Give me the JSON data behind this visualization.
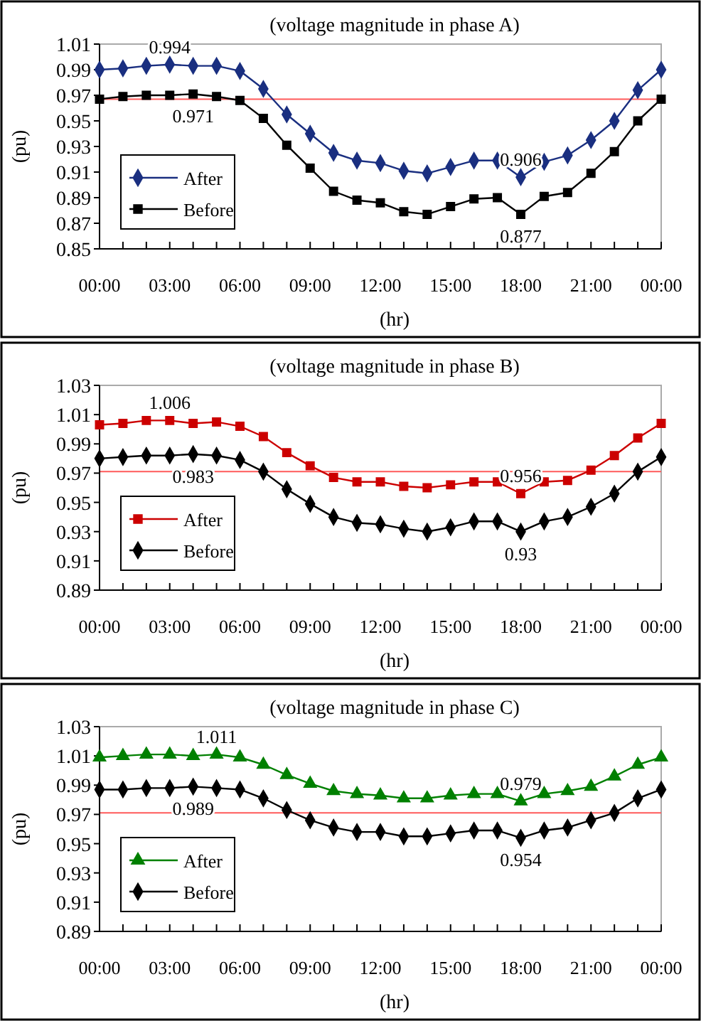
{
  "chart_data": [
    {
      "type": "line",
      "title": "(voltage magnitude in phase A)",
      "xlabel": "(hr)",
      "ylabel": "(pu)",
      "xlim": [
        0,
        24
      ],
      "ylim": [
        0.85,
        1.01
      ],
      "xticks": [
        {
          "value": 0,
          "label": "00:00"
        },
        {
          "value": 1,
          "label": null
        },
        {
          "value": 2,
          "label": null
        },
        {
          "value": 3,
          "label": "03:00"
        },
        {
          "value": 4,
          "label": null
        },
        {
          "value": 5,
          "label": null
        },
        {
          "value": 6,
          "label": "06:00"
        },
        {
          "value": 7,
          "label": null
        },
        {
          "value": 8,
          "label": null
        },
        {
          "value": 9,
          "label": "09:00"
        },
        {
          "value": 10,
          "label": null
        },
        {
          "value": 11,
          "label": null
        },
        {
          "value": 12,
          "label": "12:00"
        },
        {
          "value": 13,
          "label": null
        },
        {
          "value": 14,
          "label": null
        },
        {
          "value": 15,
          "label": "15:00"
        },
        {
          "value": 16,
          "label": null
        },
        {
          "value": 17,
          "label": null
        },
        {
          "value": 18,
          "label": "18:00"
        },
        {
          "value": 19,
          "label": null
        },
        {
          "value": 20,
          "label": null
        },
        {
          "value": 21,
          "label": "21:00"
        },
        {
          "value": 22,
          "label": null
        },
        {
          "value": 23,
          "label": null
        },
        {
          "value": 24,
          "label": "00:00"
        }
      ],
      "yticks": [
        0.85,
        0.87,
        0.89,
        0.91,
        0.93,
        0.95,
        0.97,
        0.99,
        1.01
      ],
      "x": [
        0,
        1,
        2,
        3,
        4,
        5,
        6,
        7,
        8,
        9,
        10,
        11,
        12,
        13,
        14,
        15,
        16,
        17,
        18,
        19,
        20,
        21,
        22,
        23,
        24
      ],
      "series": [
        {
          "name": "After",
          "color": "#1a2f80",
          "marker": "diamond",
          "values": [
            0.99,
            0.991,
            0.993,
            0.994,
            0.993,
            0.993,
            0.989,
            0.975,
            0.955,
            0.94,
            0.925,
            0.919,
            0.917,
            0.911,
            0.909,
            0.914,
            0.919,
            0.919,
            0.906,
            0.918,
            0.923,
            0.935,
            0.95,
            0.974,
            0.99
          ]
        },
        {
          "name": "Before",
          "color": "#000000",
          "marker": "square",
          "values": [
            0.967,
            0.969,
            0.97,
            0.97,
            0.971,
            0.969,
            0.966,
            0.952,
            0.931,
            0.913,
            0.895,
            0.888,
            0.886,
            0.879,
            0.877,
            0.883,
            0.889,
            0.89,
            0.877,
            0.891,
            0.894,
            0.909,
            0.926,
            0.95,
            0.967
          ]
        }
      ],
      "ref_lines": [
        {
          "axis": "y",
          "value": 0.967,
          "color": "#ff5a5a"
        }
      ],
      "annotations": [
        {
          "text": "0.994",
          "x": 3,
          "y": 0.994
        },
        {
          "text": "0.971",
          "x": 4,
          "y": 0.971
        },
        {
          "text": "0.906",
          "x": 18,
          "y": 0.906
        },
        {
          "text": "0.877",
          "x": 18,
          "y": 0.877
        }
      ],
      "legend": "bottom left",
      "grid": false,
      "line_style": "solid"
    },
    {
      "type": "line",
      "title": "(voltage magnitude in phase B)",
      "xlabel": "(hr)",
      "ylabel": "(pu)",
      "xlim": [
        0,
        24
      ],
      "ylim": [
        0.89,
        1.03
      ],
      "xticks": [
        {
          "value": 0,
          "label": "00:00"
        },
        {
          "value": 1,
          "label": null
        },
        {
          "value": 2,
          "label": null
        },
        {
          "value": 3,
          "label": "03:00"
        },
        {
          "value": 4,
          "label": null
        },
        {
          "value": 5,
          "label": null
        },
        {
          "value": 6,
          "label": "06:00"
        },
        {
          "value": 7,
          "label": null
        },
        {
          "value": 8,
          "label": null
        },
        {
          "value": 9,
          "label": "09:00"
        },
        {
          "value": 10,
          "label": null
        },
        {
          "value": 11,
          "label": null
        },
        {
          "value": 12,
          "label": "12:00"
        },
        {
          "value": 13,
          "label": null
        },
        {
          "value": 14,
          "label": null
        },
        {
          "value": 15,
          "label": "15:00"
        },
        {
          "value": 16,
          "label": null
        },
        {
          "value": 17,
          "label": null
        },
        {
          "value": 18,
          "label": "18:00"
        },
        {
          "value": 19,
          "label": null
        },
        {
          "value": 20,
          "label": null
        },
        {
          "value": 21,
          "label": "21:00"
        },
        {
          "value": 22,
          "label": null
        },
        {
          "value": 23,
          "label": null
        },
        {
          "value": 24,
          "label": "00:00"
        }
      ],
      "yticks": [
        0.89,
        0.91,
        0.93,
        0.95,
        0.97,
        0.99,
        1.01,
        1.03
      ],
      "x": [
        0,
        1,
        2,
        3,
        4,
        5,
        6,
        7,
        8,
        9,
        10,
        11,
        12,
        13,
        14,
        15,
        16,
        17,
        18,
        19,
        20,
        21,
        22,
        23,
        24
      ],
      "series": [
        {
          "name": "After",
          "color": "#cc0000",
          "marker": "square",
          "values": [
            1.003,
            1.004,
            1.006,
            1.006,
            1.004,
            1.005,
            1.002,
            0.995,
            0.984,
            0.975,
            0.967,
            0.964,
            0.964,
            0.961,
            0.96,
            0.962,
            0.964,
            0.964,
            0.956,
            0.964,
            0.965,
            0.972,
            0.982,
            0.994,
            1.004
          ]
        },
        {
          "name": "Before",
          "color": "#000000",
          "marker": "diamond",
          "values": [
            0.98,
            0.981,
            0.982,
            0.982,
            0.983,
            0.982,
            0.979,
            0.971,
            0.959,
            0.949,
            0.94,
            0.936,
            0.935,
            0.932,
            0.93,
            0.933,
            0.937,
            0.937,
            0.93,
            0.937,
            0.94,
            0.947,
            0.956,
            0.971,
            0.981
          ]
        }
      ],
      "ref_lines": [
        {
          "axis": "y",
          "value": 0.971,
          "color": "#ff5a5a"
        }
      ],
      "annotations": [
        {
          "text": "1.006",
          "x": 3,
          "y": 1.006
        },
        {
          "text": "0.983",
          "x": 4,
          "y": 0.983
        },
        {
          "text": "0.956",
          "x": 18,
          "y": 0.956
        },
        {
          "text": "0.93",
          "x": 18,
          "y": 0.93
        }
      ],
      "legend": "bottom left",
      "grid": false,
      "line_style": "solid"
    },
    {
      "type": "line",
      "title": "(voltage magnitude in phase C)",
      "xlabel": "(hr)",
      "ylabel": "(pu)",
      "xlim": [
        0,
        24
      ],
      "ylim": [
        0.89,
        1.03
      ],
      "xticks": [
        {
          "value": 0,
          "label": "00:00"
        },
        {
          "value": 1,
          "label": null
        },
        {
          "value": 2,
          "label": null
        },
        {
          "value": 3,
          "label": "03:00"
        },
        {
          "value": 4,
          "label": null
        },
        {
          "value": 5,
          "label": null
        },
        {
          "value": 6,
          "label": "06:00"
        },
        {
          "value": 7,
          "label": null
        },
        {
          "value": 8,
          "label": null
        },
        {
          "value": 9,
          "label": "09:00"
        },
        {
          "value": 10,
          "label": null
        },
        {
          "value": 11,
          "label": null
        },
        {
          "value": 12,
          "label": "12:00"
        },
        {
          "value": 13,
          "label": null
        },
        {
          "value": 14,
          "label": null
        },
        {
          "value": 15,
          "label": "15:00"
        },
        {
          "value": 16,
          "label": null
        },
        {
          "value": 17,
          "label": null
        },
        {
          "value": 18,
          "label": "18:00"
        },
        {
          "value": 19,
          "label": null
        },
        {
          "value": 20,
          "label": null
        },
        {
          "value": 21,
          "label": "21:00"
        },
        {
          "value": 22,
          "label": null
        },
        {
          "value": 23,
          "label": null
        },
        {
          "value": 24,
          "label": "00:00"
        }
      ],
      "yticks": [
        0.89,
        0.91,
        0.93,
        0.95,
        0.97,
        0.99,
        1.01,
        1.03
      ],
      "x": [
        0,
        1,
        2,
        3,
        4,
        5,
        6,
        7,
        8,
        9,
        10,
        11,
        12,
        13,
        14,
        15,
        16,
        17,
        18,
        19,
        20,
        21,
        22,
        23,
        24
      ],
      "series": [
        {
          "name": "After",
          "color": "#008000",
          "marker": "triangle",
          "values": [
            1.009,
            1.01,
            1.011,
            1.011,
            1.01,
            1.011,
            1.009,
            1.004,
            0.997,
            0.991,
            0.986,
            0.984,
            0.983,
            0.981,
            0.981,
            0.983,
            0.984,
            0.984,
            0.979,
            0.984,
            0.986,
            0.989,
            0.996,
            1.004,
            1.009
          ]
        },
        {
          "name": "Before",
          "color": "#000000",
          "marker": "diamond",
          "values": [
            0.987,
            0.987,
            0.988,
            0.988,
            0.989,
            0.988,
            0.987,
            0.981,
            0.973,
            0.966,
            0.961,
            0.958,
            0.958,
            0.955,
            0.955,
            0.957,
            0.959,
            0.959,
            0.954,
            0.959,
            0.961,
            0.966,
            0.971,
            0.981,
            0.987
          ]
        }
      ],
      "ref_lines": [
        {
          "axis": "y",
          "value": 0.971,
          "color": "#ff5a5a"
        }
      ],
      "annotations": [
        {
          "text": "1.011",
          "x": 5,
          "y": 1.011
        },
        {
          "text": "0.989",
          "x": 4,
          "y": 0.989
        },
        {
          "text": "0.979",
          "x": 18,
          "y": 0.979
        },
        {
          "text": "0.954",
          "x": 18,
          "y": 0.954
        }
      ],
      "legend": "bottom left",
      "grid": false,
      "line_style": "solid"
    }
  ]
}
